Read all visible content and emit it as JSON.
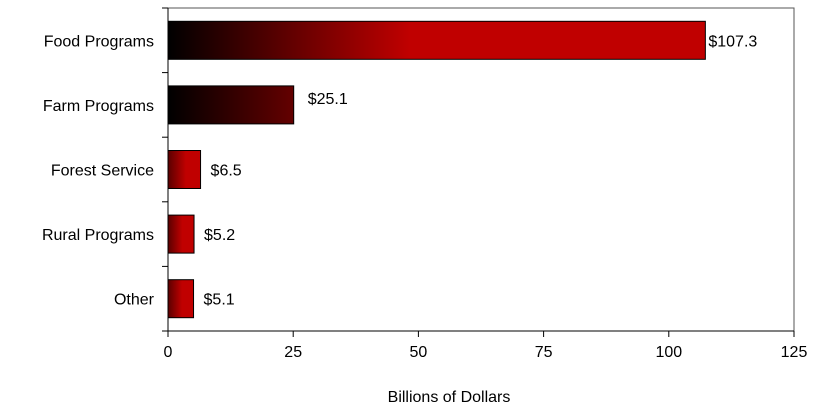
{
  "chart_data": {
    "type": "bar",
    "orientation": "horizontal",
    "title": "",
    "categories": [
      "Food Programs",
      "Farm Programs",
      "Forest Service",
      "Rural Programs",
      "Other"
    ],
    "values": [
      107.3,
      25.1,
      6.5,
      5.2,
      5.1
    ],
    "value_labels": [
      "$107.3",
      "$25.1",
      "$6.5",
      "$5.2",
      "$5.1"
    ],
    "xlabel": "Billions of Dollars",
    "ylabel": "",
    "xlim": [
      0,
      125
    ],
    "x_ticks": [
      0,
      25,
      50,
      75,
      100,
      125
    ],
    "x_tick_labels": [
      "0",
      "25",
      "50",
      "75",
      "100",
      "125"
    ],
    "grid": false,
    "legend": "none",
    "colors": {
      "bar_dark": "#000000",
      "bar_red": "#c00000",
      "bar_outline": "#000000",
      "axis": "#000000",
      "frame": "#555555"
    }
  }
}
